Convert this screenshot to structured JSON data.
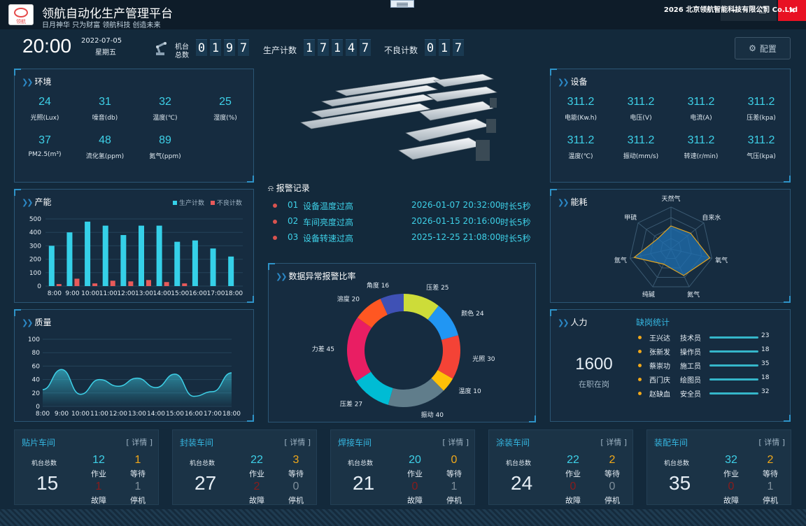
{
  "app": {
    "title": "领航自动化生产管理平台",
    "subtitle": "日月神华 只为财富 领航科技 创造未来",
    "logo_text": "领航"
  },
  "window": {
    "minimize_icon": "—",
    "maximize_icon": "❐",
    "close_icon": "✕"
  },
  "header": {
    "time": "20:00",
    "date": "2022-07-05",
    "weekday": "星期五",
    "machine_label1": "机台",
    "machine_label2": "总数",
    "machine_digits": [
      "0",
      "1",
      "9",
      "7"
    ],
    "production_label": "生产计数",
    "production_digits": [
      "1",
      "7",
      "1",
      "4",
      "7"
    ],
    "defect_label": "不良计数",
    "defect_digits": [
      "0",
      "1",
      "7"
    ],
    "config_label": "配置"
  },
  "env": {
    "title": "环境",
    "stats": [
      {
        "value": "24",
        "label": "光照(Lux)"
      },
      {
        "value": "31",
        "label": "噪音(db)"
      },
      {
        "value": "32",
        "label": "温度(℃)"
      },
      {
        "value": "25",
        "label": "湿度(%)"
      },
      {
        "value": "37",
        "label": "PM2.5(m³)"
      },
      {
        "value": "48",
        "label": "流化氢(ppm)"
      },
      {
        "value": "89",
        "label": "氮气(ppm)"
      }
    ]
  },
  "equip": {
    "title": "设备",
    "stats": [
      {
        "value": "311.2",
        "label": "电能(Kw.h)"
      },
      {
        "value": "311.2",
        "label": "电压(V)"
      },
      {
        "value": "311.2",
        "label": "电流(A)"
      },
      {
        "value": "311.2",
        "label": "压差(kpa)"
      },
      {
        "value": "311.2",
        "label": "温度(℃)"
      },
      {
        "value": "311.2",
        "label": "振动(mm/s)"
      },
      {
        "value": "311.2",
        "label": "转速(r/min)"
      },
      {
        "value": "311.2",
        "label": "气压(kpa)"
      }
    ]
  },
  "capacity": {
    "title": "产能"
  },
  "quality": {
    "title": "质量"
  },
  "energy": {
    "title": "能耗"
  },
  "alarms": {
    "title": "报警记录",
    "rows": [
      {
        "num": "01",
        "text": "设备温度过高",
        "time": "2026-01-07 20:32:00",
        "duration": "时长5秒"
      },
      {
        "num": "02",
        "text": "车间亮度过高",
        "time": "2026-01-15 20:16:00",
        "duration": "时长5秒"
      },
      {
        "num": "03",
        "text": "设备转速过高",
        "time": "2025-12-25 21:08:00",
        "duration": "时长5秒"
      }
    ]
  },
  "anomaly": {
    "title": "数据异常报警比率"
  },
  "manpower": {
    "title": "人力",
    "total": "1600",
    "total_label": "在职在岗",
    "absence_title": "缺岗统计",
    "staff": [
      {
        "name": "王兴达",
        "role": "技术员",
        "count": "23",
        "value": 23
      },
      {
        "name": "张新发",
        "role": "操作员",
        "count": "18",
        "value": 18
      },
      {
        "name": "蔡崇功",
        "role": "施工员",
        "count": "35",
        "value": 35
      },
      {
        "name": "西门庆",
        "role": "绘图员",
        "count": "18",
        "value": 18
      },
      {
        "name": "赵缺血",
        "role": "安全员",
        "count": "32",
        "value": 32
      }
    ]
  },
  "workshops": [
    {
      "name": "贴片车间",
      "detail": "[ 详情 ]",
      "total_label": "机台总数",
      "total": "15",
      "working": "12",
      "working_label": "作业",
      "waiting": "1",
      "waiting_label": "等待",
      "fault": "1",
      "fault_label": "故障",
      "stopped": "1",
      "stopped_label": "停机"
    },
    {
      "name": "封装车间",
      "detail": "[ 详情 ]",
      "total_label": "机台总数",
      "total": "27",
      "working": "22",
      "working_label": "作业",
      "waiting": "3",
      "waiting_label": "等待",
      "fault": "2",
      "fault_label": "故障",
      "stopped": "0",
      "stopped_label": "停机"
    },
    {
      "name": "焊接车间",
      "detail": "[ 详情 ]",
      "total_label": "机台总数",
      "total": "21",
      "working": "20",
      "working_label": "作业",
      "waiting": "0",
      "waiting_label": "等待",
      "fault": "0",
      "fault_label": "故障",
      "stopped": "1",
      "stopped_label": "停机"
    },
    {
      "name": "涂装车间",
      "detail": "[ 详情 ]",
      "total_label": "机台总数",
      "total": "24",
      "working": "22",
      "working_label": "作业",
      "waiting": "2",
      "waiting_label": "等待",
      "fault": "0",
      "fault_label": "故障",
      "stopped": "0",
      "stopped_label": "停机"
    },
    {
      "name": "装配车间",
      "detail": "[ 详情 ]",
      "total_label": "机台总数",
      "total": "35",
      "working": "32",
      "working_label": "作业",
      "waiting": "2",
      "waiting_label": "等待",
      "fault": "0",
      "fault_label": "故障",
      "stopped": "1",
      "stopped_label": "停机"
    }
  ],
  "footer": {
    "text": "2026 北京领航智能科技有限公司 Co.Ltd"
  },
  "colors": {
    "accent": "#3ed1e8",
    "bar_primary": "#35d0e8",
    "bar_defect": "#e85a5a",
    "waiting": "#f0a81a",
    "fault": "#8a1c1c",
    "radar_fill": "#1f6fb0",
    "radar_line": "#e0a422"
  },
  "chart_data": [
    {
      "type": "bar",
      "title": "产能",
      "categories": [
        "8:00",
        "9:00",
        "10:00",
        "11:00",
        "12:00",
        "13:00",
        "14:00",
        "15:00",
        "16:00",
        "17:00",
        "18:00"
      ],
      "series": [
        {
          "name": "生产计数",
          "values": [
            300,
            400,
            480,
            450,
            380,
            450,
            450,
            330,
            340,
            280,
            220
          ]
        },
        {
          "name": "不良计数",
          "values": [
            15,
            55,
            20,
            40,
            35,
            45,
            30,
            20,
            0,
            0,
            0
          ]
        }
      ],
      "ylim": [
        0,
        500
      ],
      "yticks": [
        0,
        100,
        200,
        300,
        400,
        500
      ],
      "legend": "top-right"
    },
    {
      "type": "area",
      "title": "质量",
      "categories": [
        "8:00",
        "9:00",
        "10:00",
        "11:00",
        "12:00",
        "13:00",
        "14:00",
        "15:00",
        "16:00",
        "17:00",
        "18:00"
      ],
      "series": [
        {
          "values": [
            25,
            55,
            18,
            40,
            30,
            42,
            28,
            48,
            15,
            22,
            50
          ]
        }
      ],
      "ylim": [
        0,
        100
      ],
      "yticks": [
        0,
        20,
        40,
        60,
        80,
        100
      ]
    },
    {
      "type": "radar",
      "title": "能耗",
      "axes": [
        "天然气",
        "自来水",
        "氧气",
        "氮气",
        "纯碱",
        "氩气",
        "甲硫"
      ],
      "series": [
        {
          "values": [
            55,
            60,
            95,
            70,
            40,
            90,
            40
          ]
        }
      ],
      "max": 100
    },
    {
      "type": "pie",
      "title": "数据异常报警比率",
      "slices": [
        {
          "label": "压差",
          "value": 25,
          "color": "#cddc39"
        },
        {
          "label": "颜色",
          "value": 24,
          "color": "#2196f3"
        },
        {
          "label": "光照",
          "value": 30,
          "color": "#f44336"
        },
        {
          "label": "温度",
          "value": 10,
          "color": "#ffc107"
        },
        {
          "label": "振动",
          "value": 40,
          "color": "#607d8b"
        },
        {
          "label": "压差",
          "value": 27,
          "color": "#00bcd4"
        },
        {
          "label": "力差",
          "value": 45,
          "color": "#e91e63"
        },
        {
          "label": "溶度",
          "value": 20,
          "color": "#ff5722"
        },
        {
          "label": "角度",
          "value": 16,
          "color": "#3f51b5"
        }
      ]
    }
  ]
}
